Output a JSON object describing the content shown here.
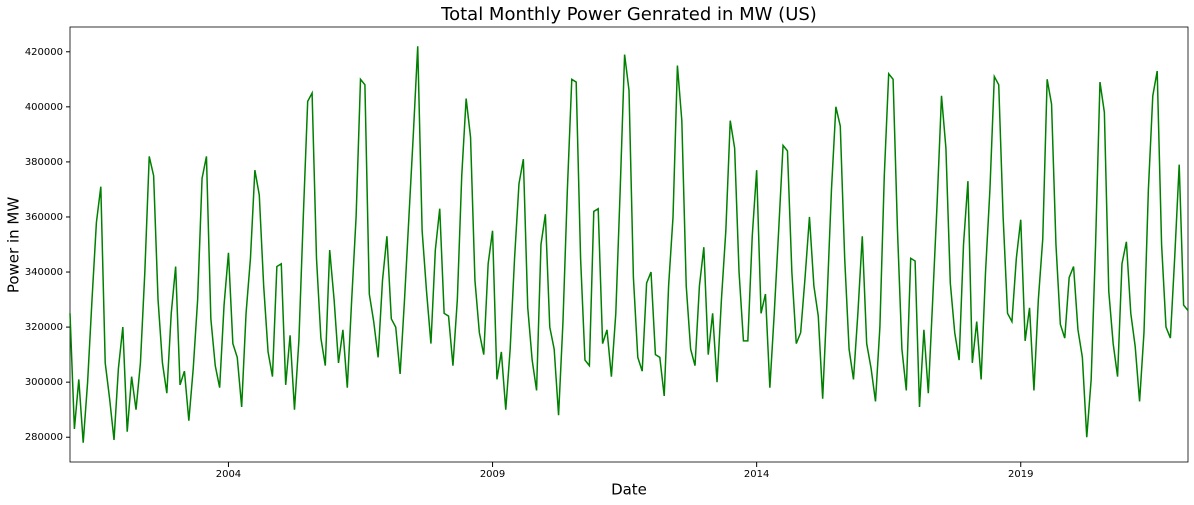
{
  "chart_data": {
    "type": "line",
    "title": "Total Monthly Power Genrated in MW (US)",
    "x_label": "Date",
    "y_label": "Power in MW",
    "x": [
      "2001-01",
      "2001-02",
      "2001-03",
      "2001-04",
      "2001-05",
      "2001-06",
      "2001-07",
      "2001-08",
      "2001-09",
      "2001-10",
      "2001-11",
      "2001-12",
      "2002-01",
      "2002-02",
      "2002-03",
      "2002-04",
      "2002-05",
      "2002-06",
      "2002-07",
      "2002-08",
      "2002-09",
      "2002-10",
      "2002-11",
      "2002-12",
      "2003-01",
      "2003-02",
      "2003-03",
      "2003-04",
      "2003-05",
      "2003-06",
      "2003-07",
      "2003-08",
      "2003-09",
      "2003-10",
      "2003-11",
      "2003-12",
      "2004-01",
      "2004-02",
      "2004-03",
      "2004-04",
      "2004-05",
      "2004-06",
      "2004-07",
      "2004-08",
      "2004-09",
      "2004-10",
      "2004-11",
      "2004-12",
      "2005-01",
      "2005-02",
      "2005-03",
      "2005-04",
      "2005-05",
      "2005-06",
      "2005-07",
      "2005-08",
      "2005-09",
      "2005-10",
      "2005-11",
      "2005-12",
      "2006-01",
      "2006-02",
      "2006-03",
      "2006-04",
      "2006-05",
      "2006-06",
      "2006-07",
      "2006-08",
      "2006-09",
      "2006-10",
      "2006-11",
      "2006-12",
      "2007-01",
      "2007-02",
      "2007-03",
      "2007-04",
      "2007-05",
      "2007-06",
      "2007-07",
      "2007-08",
      "2007-09",
      "2007-10",
      "2007-11",
      "2007-12",
      "2008-01",
      "2008-02",
      "2008-03",
      "2008-04",
      "2008-05",
      "2008-06",
      "2008-07",
      "2008-08",
      "2008-09",
      "2008-10",
      "2008-11",
      "2008-12",
      "2009-01",
      "2009-02",
      "2009-03",
      "2009-04",
      "2009-05",
      "2009-06",
      "2009-07",
      "2009-08",
      "2009-09",
      "2009-10",
      "2009-11",
      "2009-12",
      "2010-01",
      "2010-02",
      "2010-03",
      "2010-04",
      "2010-05",
      "2010-06",
      "2010-07",
      "2010-08",
      "2010-09",
      "2010-10",
      "2010-11",
      "2010-12",
      "2011-01",
      "2011-02",
      "2011-03",
      "2011-04",
      "2011-05",
      "2011-06",
      "2011-07",
      "2011-08",
      "2011-09",
      "2011-10",
      "2011-11",
      "2011-12",
      "2012-01",
      "2012-02",
      "2012-03",
      "2012-04",
      "2012-05",
      "2012-06",
      "2012-07",
      "2012-08",
      "2012-09",
      "2012-10",
      "2012-11",
      "2012-12",
      "2013-01",
      "2013-02",
      "2013-03",
      "2013-04",
      "2013-05",
      "2013-06",
      "2013-07",
      "2013-08",
      "2013-09",
      "2013-10",
      "2013-11",
      "2013-12",
      "2014-01",
      "2014-02",
      "2014-03",
      "2014-04",
      "2014-05",
      "2014-06",
      "2014-07",
      "2014-08",
      "2014-09",
      "2014-10",
      "2014-11",
      "2014-12",
      "2015-01",
      "2015-02",
      "2015-03",
      "2015-04",
      "2015-05",
      "2015-06",
      "2015-07",
      "2015-08",
      "2015-09",
      "2015-10",
      "2015-11",
      "2015-12",
      "2016-01",
      "2016-02",
      "2016-03",
      "2016-04",
      "2016-05",
      "2016-06",
      "2016-07",
      "2016-08",
      "2016-09",
      "2016-10",
      "2016-11",
      "2016-12",
      "2017-01",
      "2017-02",
      "2017-03",
      "2017-04",
      "2017-05",
      "2017-06",
      "2017-07",
      "2017-08",
      "2017-09",
      "2017-10",
      "2017-11",
      "2017-12",
      "2018-01",
      "2018-02",
      "2018-03",
      "2018-04",
      "2018-05",
      "2018-06",
      "2018-07",
      "2018-08",
      "2018-09",
      "2018-10",
      "2018-11",
      "2018-12",
      "2019-01",
      "2019-02",
      "2019-03",
      "2019-04",
      "2019-05",
      "2019-06",
      "2019-07",
      "2019-08",
      "2019-09",
      "2019-10",
      "2019-11",
      "2019-12",
      "2020-01",
      "2020-02",
      "2020-03",
      "2020-04",
      "2020-05",
      "2020-06",
      "2020-07",
      "2020-08",
      "2020-09",
      "2020-10",
      "2020-11",
      "2020-12",
      "2021-01",
      "2021-02",
      "2021-03",
      "2021-04",
      "2021-05",
      "2021-06",
      "2021-07",
      "2021-08",
      "2021-09",
      "2021-10",
      "2021-11",
      "2021-12",
      "2022-01",
      "2022-02",
      "2022-03"
    ],
    "series": [
      {
        "color": "#008000",
        "values": [
          325000,
          283000,
          301000,
          278000,
          300000,
          330000,
          358000,
          371000,
          307000,
          294000,
          279000,
          305000,
          320000,
          282000,
          302000,
          290000,
          307000,
          340000,
          382000,
          375000,
          330000,
          307000,
          296000,
          325000,
          342000,
          299000,
          304000,
          286000,
          305000,
          330000,
          374000,
          382000,
          323000,
          306000,
          298000,
          328000,
          347000,
          314000,
          309000,
          291000,
          325000,
          345000,
          377000,
          368000,
          335000,
          311000,
          302000,
          342000,
          343000,
          299000,
          317000,
          290000,
          315000,
          360000,
          402000,
          405000,
          345000,
          316000,
          306000,
          348000,
          330000,
          307000,
          319000,
          298000,
          330000,
          360000,
          410000,
          408000,
          332000,
          322000,
          309000,
          337000,
          353000,
          323000,
          320000,
          303000,
          330000,
          360000,
          390000,
          422000,
          355000,
          333000,
          314000,
          348000,
          363000,
          325000,
          324000,
          306000,
          330000,
          375000,
          403000,
          389000,
          337000,
          318000,
          310000,
          343000,
          355000,
          301000,
          311000,
          290000,
          312000,
          345000,
          372000,
          381000,
          327000,
          308000,
          297000,
          350000,
          361000,
          320000,
          312000,
          288000,
          322000,
          370000,
          410000,
          409000,
          345000,
          308000,
          306000,
          362000,
          363000,
          314000,
          319000,
          302000,
          325000,
          370000,
          419000,
          406000,
          338000,
          309000,
          304000,
          336000,
          340000,
          310000,
          309000,
          295000,
          335000,
          360000,
          415000,
          395000,
          335000,
          312000,
          306000,
          335000,
          349000,
          310000,
          325000,
          300000,
          330000,
          355000,
          395000,
          385000,
          340000,
          315000,
          315000,
          353000,
          377000,
          325000,
          332000,
          298000,
          325000,
          355000,
          386000,
          384000,
          340000,
          314000,
          318000,
          338000,
          360000,
          335000,
          324000,
          294000,
          330000,
          370000,
          400000,
          393000,
          345000,
          312000,
          301000,
          325000,
          353000,
          314000,
          305000,
          293000,
          320000,
          375000,
          412000,
          410000,
          355000,
          312000,
          297000,
          345000,
          344000,
          291000,
          319000,
          296000,
          330000,
          365000,
          404000,
          385000,
          336000,
          318000,
          308000,
          350000,
          373000,
          307000,
          322000,
          301000,
          340000,
          370000,
          411000,
          408000,
          360000,
          325000,
          322000,
          345000,
          359000,
          315000,
          327000,
          297000,
          330000,
          352000,
          410000,
          401000,
          350000,
          321000,
          316000,
          338000,
          342000,
          319000,
          309000,
          280000,
          301000,
          350000,
          409000,
          398000,
          333000,
          314000,
          302000,
          343000,
          351000,
          325000,
          313000,
          293000,
          318000,
          370000,
          404000,
          413000,
          350000,
          320000,
          316000,
          346000,
          379000,
          328000,
          326000
        ]
      }
    ],
    "xlim": [
      "2001-01",
      "2022-03"
    ],
    "xticks": [
      {
        "value": "2004-01",
        "label": "2004"
      },
      {
        "value": "2009-01",
        "label": "2009"
      },
      {
        "value": "2014-01",
        "label": "2014"
      },
      {
        "value": "2019-01",
        "label": "2019"
      }
    ],
    "ylim": [
      271000,
      429000
    ],
    "yticks": [
      280000,
      300000,
      320000,
      340000,
      360000,
      380000,
      400000,
      420000
    ],
    "grid": false
  }
}
